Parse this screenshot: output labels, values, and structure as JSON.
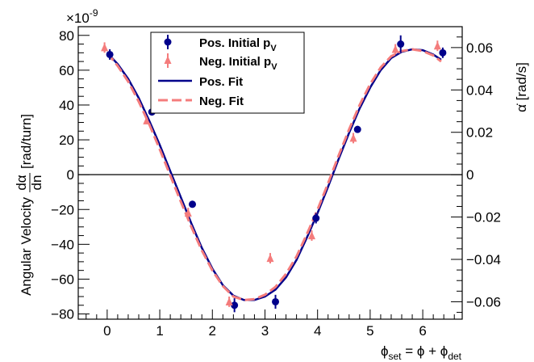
{
  "chart_data": {
    "type": "scatter",
    "exponent_label": "×10",
    "exponent_power": "-9",
    "xlim": [
      -0.55,
      6.75
    ],
    "ylim": [
      -83,
      85
    ],
    "x_ticks": [
      0,
      1,
      2,
      3,
      4,
      5,
      6
    ],
    "y_ticks": [
      -80,
      -60,
      -40,
      -20,
      0,
      20,
      40,
      60,
      80
    ],
    "right_axis": {
      "ticks": [
        -0.06,
        -0.04,
        -0.02,
        0,
        0.02,
        0.04,
        0.06
      ],
      "tick_labels": [
        "−0.06",
        "−0.04",
        "−0.02",
        "0",
        "0.02",
        "0.04",
        "0.06"
      ],
      "scale": 0.000822
    },
    "y_tick_labels": [
      "−80",
      "−60",
      "−40",
      "−20",
      "0",
      "20",
      "40",
      "60",
      "80"
    ],
    "x_tick_labels": [
      "0",
      "1",
      "2",
      "3",
      "4",
      "5",
      "6"
    ],
    "ylabel_text": "Angular Velocity",
    "ylabel_frac_num": "dα",
    "ylabel_frac_den": "dn",
    "ylabel_units": "[rad/turn]",
    "right_label": "α̇ [rad/s]",
    "xlabel": {
      "phi": "ϕ",
      "sub_set": "set",
      "middle": " = ϕ + ϕ",
      "sub_det": "det"
    },
    "series": [
      {
        "name": "Pos. Initial p",
        "name_sub": "V",
        "kind": "points",
        "marker": "circle",
        "color": "#00008b",
        "x": [
          0.05,
          0.85,
          1.62,
          2.42,
          3.2,
          3.97,
          4.76,
          5.58,
          6.38
        ],
        "y": [
          69,
          36,
          -17,
          -75,
          -73,
          -25,
          26,
          75,
          70
        ],
        "err": [
          3,
          2,
          2,
          4,
          4,
          3,
          2,
          5,
          3
        ]
      },
      {
        "name": "Neg. Initial p",
        "name_sub": "V",
        "kind": "points",
        "marker": "triangle",
        "color": "#f47c7c",
        "x": [
          -0.05,
          0.75,
          1.54,
          2.32,
          3.1,
          3.89,
          4.68,
          5.48,
          6.28
        ],
        "y": [
          73,
          31,
          -22,
          -73,
          -48,
          -35,
          21,
          72,
          74
        ],
        "err": [
          3,
          2,
          3,
          3,
          3,
          3,
          3,
          3,
          3
        ]
      },
      {
        "name": "Pos. Fit",
        "kind": "line",
        "color": "#00008b",
        "x": [
          0,
          0.2,
          0.4,
          0.6,
          0.8,
          1.0,
          1.2,
          1.4,
          1.6,
          1.8,
          2.0,
          2.2,
          2.4,
          2.6,
          2.8,
          3.0,
          3.2,
          3.4,
          3.6,
          3.8,
          4.0,
          4.2,
          4.4,
          4.6,
          4.8,
          5.0,
          5.2,
          5.4,
          5.6,
          5.8,
          6.0,
          6.2,
          6.35
        ],
        "y": [
          70,
          63.5,
          55,
          44,
          31,
          17,
          2,
          -13,
          -28,
          -42,
          -54,
          -63.5,
          -69.5,
          -72,
          -72,
          -70,
          -66,
          -59,
          -49,
          -36,
          -22,
          -7,
          9,
          24,
          38,
          50,
          60,
          67,
          70.5,
          72,
          71.5,
          69,
          66
        ]
      },
      {
        "name": "Neg. Fit",
        "kind": "line",
        "dashed": true,
        "color": "#f47c7c",
        "x": [
          0,
          0.2,
          0.4,
          0.6,
          0.8,
          1.0,
          1.2,
          1.4,
          1.6,
          1.8,
          2.0,
          2.2,
          2.4,
          2.6,
          2.8,
          3.0,
          3.2,
          3.4,
          3.6,
          3.8,
          4.0,
          4.2,
          4.4,
          4.6,
          4.8,
          5.0,
          5.2,
          5.4,
          5.6,
          5.8,
          6.0,
          6.2,
          6.35
        ],
        "y": [
          70,
          62.5,
          53.5,
          42,
          29,
          14.5,
          -0.5,
          -15.5,
          -30,
          -43.5,
          -55,
          -64,
          -70,
          -72,
          -71.5,
          -69,
          -64.5,
          -57,
          -47,
          -34,
          -20,
          -5,
          11,
          26,
          40,
          52,
          61.5,
          68,
          71,
          72,
          71,
          68.5,
          65
        ]
      }
    ],
    "legend_position": "top-center",
    "reference_line_y": 0
  }
}
